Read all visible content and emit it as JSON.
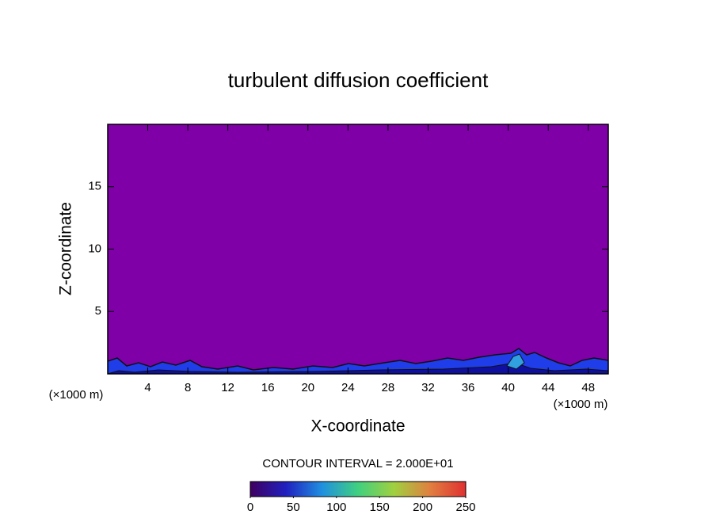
{
  "chart_data": {
    "type": "contour",
    "title": "turbulent diffusion coefficient",
    "x_label": "X-coordinate",
    "y_label": "Z-coordinate",
    "x_unit_label": "(×1000 m)",
    "y_unit_label": "(×1000 m)",
    "xlim": [
      0,
      50
    ],
    "xticks": [
      4,
      8,
      12,
      16,
      20,
      24,
      28,
      32,
      36,
      40,
      44,
      48
    ],
    "ylim": [
      0,
      20
    ],
    "yticks": [
      5,
      10,
      15
    ],
    "fill_color": "#8000a8",
    "contour_interval_label": "CONTOUR INTERVAL = 2.000E+01",
    "colorbar": {
      "lim": [
        0,
        250
      ],
      "ticks": [
        0,
        50,
        100,
        150,
        200,
        250
      ],
      "colors": [
        "#400060",
        "#2020c0",
        "#2090e0",
        "#40d080",
        "#a0d040",
        "#e08040",
        "#e03030"
      ]
    }
  }
}
